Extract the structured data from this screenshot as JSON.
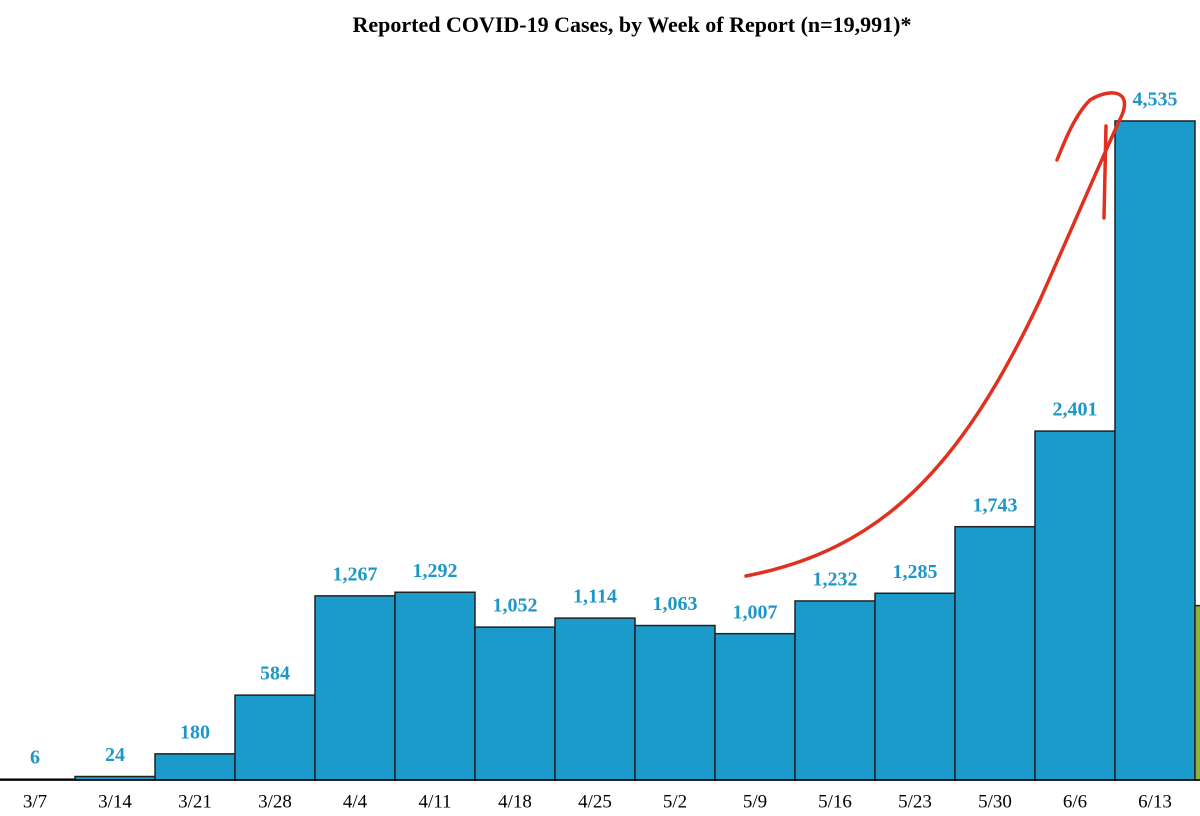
{
  "chart_data": {
    "type": "bar",
    "title": "Reported COVID-19 Cases, by Week of Report (n=19,991)*",
    "categories": [
      "3/7",
      "3/14",
      "3/21",
      "3/28",
      "4/4",
      "4/11",
      "4/18",
      "4/25",
      "5/2",
      "5/9",
      "5/16",
      "5/23",
      "5/30",
      "6/6",
      "6/13",
      null
    ],
    "values": [
      6,
      24,
      180,
      584,
      1267,
      1292,
      1052,
      1114,
      1063,
      1007,
      1232,
      1285,
      1743,
      2401,
      4535,
      1200
    ],
    "value_labels": [
      "6",
      "24",
      "180",
      "584",
      "1,267",
      "1,292",
      "1,052",
      "1,114",
      "1,063",
      "1,007",
      "1,232",
      "1,285",
      "1,743",
      "2,401",
      "4,535",
      null
    ],
    "colors": [
      "#1b9bcc",
      "#1b9bcc",
      "#1b9bcc",
      "#1b9bcc",
      "#1b9bcc",
      "#1b9bcc",
      "#1b9bcc",
      "#1b9bcc",
      "#1b9bcc",
      "#1b9bcc",
      "#1b9bcc",
      "#1b9bcc",
      "#1b9bcc",
      "#1b9bcc",
      "#1b9bcc",
      "#8db33a"
    ],
    "ylim": [
      0,
      5000
    ]
  }
}
